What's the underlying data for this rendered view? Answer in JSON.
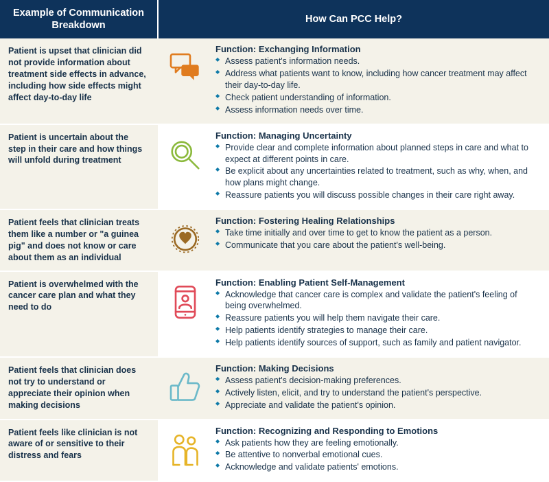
{
  "header": {
    "left": "Example of Communication Breakdown",
    "right": "How Can PCC Help?"
  },
  "rows": [
    {
      "example": "Patient is upset that clinician did not provide information about treatment side effects in advance, including how side effects might affect day-to-day life",
      "function": "Function: Exchanging Information",
      "bullets": [
        "Assess patient's information needs.",
        "Address what patients want to know, including how cancer treatment may affect their day-to-day life.",
        "Check patient understanding of information.",
        "Assess information needs over time."
      ],
      "icon": "chat-icon",
      "icon_color": "#e07c1f",
      "alt": true
    },
    {
      "example": "Patient is uncertain about the step in their care and how things will unfold during treatment",
      "function": "Function: Managing Uncertainty",
      "bullets": [
        "Provide clear and complete information about planned steps in care and what to expect at different points in care.",
        "Be explicit about any uncertainties related to treatment, such as why, when, and how plans might change.",
        "Reassure patients you will discuss possible changes in their care right away."
      ],
      "icon": "magnifier-icon",
      "icon_color": "#8bb93c",
      "alt": false
    },
    {
      "example": "Patient feels that clinician treats them like a number or \"a guinea pig\" and does not know or care about them as an individual",
      "function": "Function: Fostering Healing Relationships",
      "bullets": [
        "Take time initially and over time to get to know the patient as a person.",
        "Communicate that you care about the patient's well-being."
      ],
      "icon": "heart-badge-icon",
      "icon_color": "#9b6a24",
      "alt": true
    },
    {
      "example": "Patient is overwhelmed with the cancer care plan and what they need to do",
      "function": "Function: Enabling Patient Self-Management",
      "bullets": [
        "Acknowledge that cancer care is complex and validate the patient's feeling of being overwhelmed.",
        "Reassure patients you will help them navigate their care.",
        "Help patients identify strategies to manage their care.",
        "Help patients identify sources of support, such as family and patient navigator."
      ],
      "icon": "phone-person-icon",
      "icon_color": "#e04a58",
      "alt": false
    },
    {
      "example": "Patient feels that clinician does not try to understand or appreciate their opinion when making decisions",
      "function": "Function: Making Decisions",
      "bullets": [
        "Assess patient's decision-making preferences.",
        "Actively listen, elicit, and try to understand the patient's perspective.",
        "Appreciate and validate the patient's opinion."
      ],
      "icon": "thumbs-up-icon",
      "icon_color": "#6bb9c9",
      "alt": true
    },
    {
      "example": "Patient feels like clinician is not aware of or sensitive to their distress and fears",
      "function": "Function: Recognizing and Responding to Emotions",
      "bullets": [
        "Ask patients how they are feeling emotionally.",
        "Be attentive to nonverbal emotional cues.",
        "Acknowledge and validate patients' emotions."
      ],
      "icon": "people-icon",
      "icon_color": "#e6b428",
      "alt": false
    }
  ]
}
